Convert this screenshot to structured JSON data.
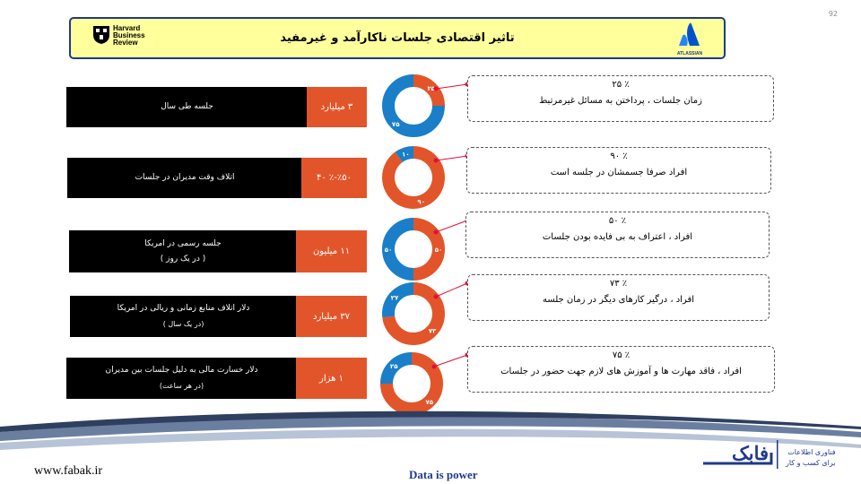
{
  "page_number": "92",
  "header": {
    "title": "تاثیر اقتصادی جلسات ناکارآمد و غیرمفید",
    "left_logo": [
      "Harvard",
      "Business",
      "Review"
    ],
    "right_logo": "ATLASSIAN"
  },
  "rows": [
    {
      "label_lines": [
        "جلسه طی سال"
      ],
      "value": "۳ میلیارد",
      "donut": {
        "orange_pct": 25,
        "blue_pct": 75,
        "orange_label": "۲۵",
        "blue_label": "۷۵"
      },
      "callout": {
        "pct": "٪ ۲۵",
        "desc": "زمان جلسات ، پرداختن به مسائل غیرمرتبط"
      }
    },
    {
      "label_lines": [
        "اتلاف وقت مدیران در جلسات"
      ],
      "value": "٪۵۰-٪ ۴۰",
      "donut": {
        "orange_pct": 90,
        "blue_pct": 10,
        "orange_label": "۹۰",
        "blue_label": "۱۰"
      },
      "callout": {
        "pct": "٪ ۹۰",
        "desc": "افراد صرفا جسمشان در جلسه است"
      }
    },
    {
      "label_lines": [
        "جلسه رسمی در امریکا",
        "( در یک روز )"
      ],
      "value": "۱۱ میلیون",
      "donut": {
        "orange_pct": 50,
        "blue_pct": 50,
        "orange_label": "۵۰",
        "blue_label": "۵۰"
      },
      "callout": {
        "pct": "٪ ۵۰",
        "desc": "افراد ، اعتراف به بی فایده بودن جلسات"
      }
    },
    {
      "label_lines": [
        "دلار اتلاف منابع زمانی و ریالی در امریکا",
        "(در یک سال )"
      ],
      "value": "۳۷ میلیارد",
      "donut": {
        "orange_pct": 73,
        "blue_pct": 27,
        "orange_label": "۷۳",
        "blue_label": "۲۷"
      },
      "callout": {
        "pct": "٪ ۷۳",
        "desc": "افراد ، درگیر کارهای دیگر در زمان جلسه"
      }
    },
    {
      "label_lines": [
        "دلار خسارت مالی به دلیل جلسات بین مدیران",
        "(در هر ساعت)"
      ],
      "value": "۱ هزار",
      "donut": {
        "orange_pct": 75,
        "blue_pct": 25,
        "orange_label": "۷۵",
        "blue_label": "۲۵"
      },
      "callout": {
        "pct": "٪ ۷۵",
        "desc": "افراد ، فاقد مهارت ها و آموزش های لازم جهت حضور در جلسات"
      }
    }
  ],
  "colors": {
    "orange": "#e2552a",
    "blue": "#1a7fc8",
    "dot": "#e0103a"
  },
  "footer": {
    "url": "www.fabak.ir",
    "slogan": "Data is power",
    "brand": "فابک",
    "tagline_1": "فناوری اطلاعات",
    "tagline_2": "برای کسب و کار"
  }
}
